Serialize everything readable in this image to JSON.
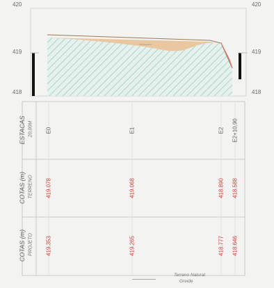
{
  "profile": {
    "elev_top": "420",
    "elev_mid": "419",
    "elev_bot": "418",
    "band_label": "~~~~~~",
    "colors": {
      "terrain_fill": "#e9c89f",
      "terrain_line": "#9a7a55",
      "hatch": "#a9d6cc",
      "project_line": "#e07070",
      "frame": "#cfcfcf",
      "marker": "#111111"
    }
  },
  "table": {
    "stakes": {
      "header": "ESTACAS",
      "sub": "20,00M",
      "values": [
        "E0",
        "E1",
        "E2",
        "E2+10,90"
      ]
    },
    "terrain": {
      "header": "COTAS (m)",
      "sub": "TERRENO",
      "values": [
        "419.078",
        "419.068",
        "418.890",
        "418.588"
      ]
    },
    "project": {
      "header": "COTAS (m)",
      "sub": "PROJETO",
      "values": [
        "419.353",
        "419.265",
        "418.777",
        "418.646"
      ]
    }
  },
  "legend": {
    "line1": "Terreno Natural",
    "line2": "Greide"
  }
}
